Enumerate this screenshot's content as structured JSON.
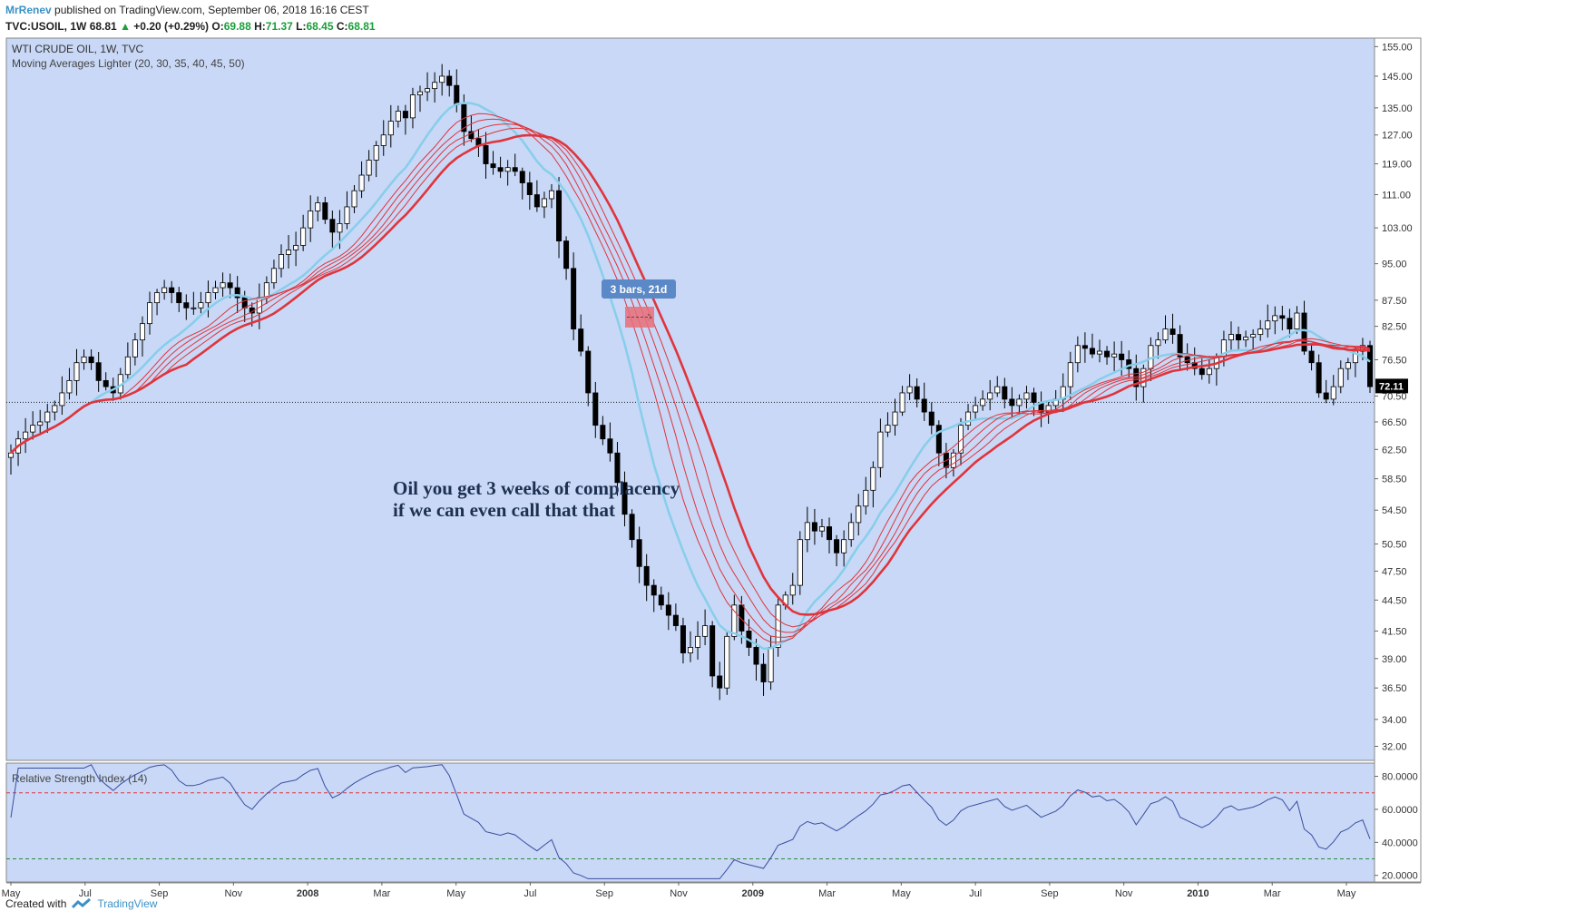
{
  "header": {
    "author": "MrRenev",
    "published": "published on TradingView.com, September 06, 2018 16:16 CEST",
    "symbol": "TVC:USOIL, 1W",
    "last": "68.81",
    "change_arrow": "▲",
    "change": "+0.20 (+0.29%)",
    "o_label": "O:",
    "o": "69.88",
    "h_label": "H:",
    "h": "71.37",
    "l_label": "L:",
    "l": "68.45",
    "c_label": "C:",
    "c": "68.81"
  },
  "footer": {
    "created_with": "Created with",
    "brand": "TradingView"
  },
  "colors": {
    "pane_bg": "#c8d8f6",
    "candle_up": "#ffffff",
    "candle_down": "#000000",
    "ma_blue": "#87ceeb",
    "ma_red": "#e0343c",
    "rsi_line": "#3a4ea0",
    "rsi_upper": "#e0343c",
    "rsi_lower": "#2a8a3a"
  },
  "chart_data": [
    {
      "type": "candlestick",
      "title": "WTI CRUDE OIL, 1W, TVC",
      "indicator_label": "Moving Averages Lighter (20, 30, 35, 40, 45, 50)",
      "price_scale": [
        "155.00",
        "145.00",
        "135.00",
        "127.00",
        "119.00",
        "111.00",
        "103.00",
        "95.00",
        "87.50",
        "82.50",
        "76.50",
        "70.50",
        "66.50",
        "62.50",
        "58.50",
        "54.50",
        "50.50",
        "47.50",
        "44.50",
        "41.50",
        "39.00",
        "36.50",
        "34.00",
        "32.00"
      ],
      "last_price_label": "72.11",
      "x_ticks": [
        "May",
        "Jul",
        "Sep",
        "Nov",
        "2008",
        "Mar",
        "May",
        "Jul",
        "Sep",
        "Nov",
        "2009",
        "Mar",
        "May",
        "Jul",
        "Sep",
        "Nov",
        "2010",
        "Mar",
        "May"
      ],
      "annotation": [
        "Oil you get 3 weeks of complacency",
        "if we can even call that that"
      ],
      "measure_label": "3 bars, 21d",
      "reference_line": 69.5,
      "close": [
        62,
        64,
        65,
        66,
        66.5,
        68,
        69,
        71,
        73,
        76,
        77,
        76,
        73,
        72,
        71,
        74,
        77,
        80,
        83,
        87,
        89,
        90,
        89,
        87,
        86,
        86,
        87,
        89,
        90,
        91,
        90,
        88,
        86,
        85,
        88,
        91,
        94,
        97,
        98,
        99,
        103,
        107,
        109,
        105,
        102,
        104,
        108,
        112,
        116,
        120,
        124,
        127,
        131,
        134,
        132,
        139,
        140,
        141,
        143,
        145,
        142,
        136,
        128,
        126,
        124,
        119,
        118,
        117,
        118,
        117,
        114,
        111,
        108,
        110,
        112,
        100,
        94,
        82,
        78,
        71,
        66,
        64,
        62,
        58,
        54,
        51,
        48,
        46,
        45,
        44,
        43,
        42,
        39.5,
        40,
        41,
        42,
        37.5,
        36.5,
        41,
        44,
        41.5,
        40,
        38.5,
        37,
        40,
        44,
        45,
        46,
        51,
        53,
        52,
        52.5,
        51,
        49.5,
        51,
        53,
        55,
        57,
        60,
        65,
        66,
        68,
        71,
        72,
        70,
        68,
        66,
        62,
        60,
        62,
        66,
        68,
        69,
        70,
        71,
        72,
        70,
        69,
        70,
        71,
        69.5,
        68,
        69,
        70,
        72,
        76,
        79,
        78.5,
        77.5,
        78,
        77,
        77.5,
        76.5,
        75,
        72,
        75,
        79,
        80,
        82,
        81,
        77,
        76,
        75,
        74,
        75,
        77,
        80,
        81,
        80,
        80.5,
        81,
        82,
        83.5,
        84.5,
        84,
        82,
        85,
        78,
        76,
        71,
        70,
        72,
        75,
        76,
        78,
        79,
        72
      ]
    },
    {
      "type": "line",
      "title": "Relative Strength Index (14)",
      "scale": [
        "80.0000",
        "60.0000",
        "40.0000",
        "20.0000"
      ],
      "levels": [
        70,
        30
      ]
    }
  ]
}
